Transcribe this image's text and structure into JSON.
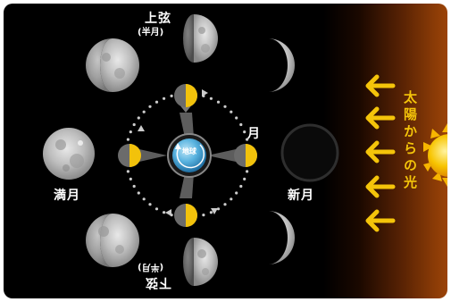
{
  "labels": {
    "first_quarter": "上弦",
    "first_quarter_sub": "(半月)",
    "last_quarter": "下弦",
    "last_quarter_sub": "(半月)",
    "full_moon": "満月",
    "new_moon": "新月",
    "moon": "月",
    "earth": "地球",
    "sunlight": "太陽からの光"
  },
  "colors": {
    "sunlight_arrow": "#f4c40a",
    "lit_half": "#f2c20b",
    "sun": "#f7b500",
    "earth": "#5ab4e0",
    "orbit": "#cccccc"
  },
  "icons": [
    "sun-icon",
    "sunlight-arrow-icon",
    "earth-icon",
    "moon-icon"
  ]
}
